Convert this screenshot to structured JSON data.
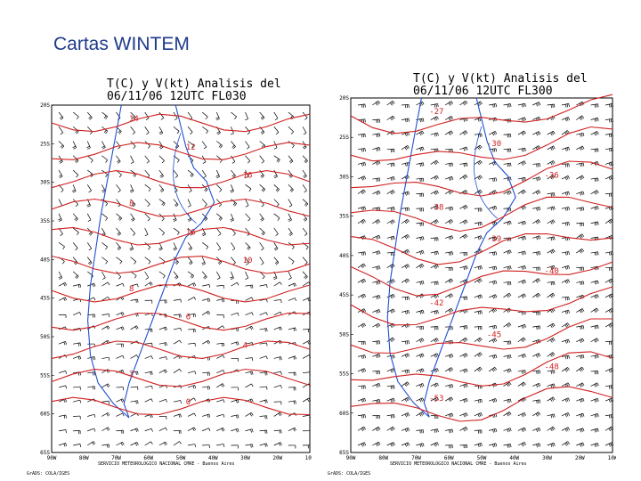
{
  "slide": {
    "title": "Cartas WINTEM"
  },
  "charts": [
    {
      "title_line1": "T(C) y V(kt)  Analisis del",
      "title_line2": "06/11/06 12UTC FL030",
      "lat_ticks": [
        "20S",
        "25S",
        "30S",
        "35S",
        "40S",
        "45S",
        "50S",
        "55S",
        "60S",
        "65S"
      ],
      "lon_ticks": [
        "90W",
        "80W",
        "70W",
        "60W",
        "50W",
        "40W",
        "30W",
        "20W",
        "10W"
      ],
      "footer_left": "GrADS: COLA/IGES",
      "footer_center": "SERVICIO METEOROLOGICO NACIONAL   CMRE - Buenos Aires",
      "isotherms": [
        "14",
        "12",
        "16",
        "8",
        "16",
        "10",
        "8",
        "6",
        "4",
        "2",
        "0"
      ],
      "colors": {
        "isotherm": "#d02020",
        "coast": "#2050d0",
        "wind": "#000000"
      }
    },
    {
      "title_line1": "T(C) y V(kt)  Analisis del",
      "title_line2": "06/11/06 12UTC FL300",
      "lat_ticks": [
        "20S",
        "25S",
        "30S",
        "35S",
        "40S",
        "45S",
        "50S",
        "55S",
        "60S",
        "65S"
      ],
      "lon_ticks": [
        "90W",
        "80W",
        "70W",
        "60W",
        "50W",
        "40W",
        "30W",
        "20W",
        "10W"
      ],
      "footer_left": "GrADS: COLA/IGES",
      "footer_center": "SERVICIO METEOROLOGICO NACIONAL   CMRE - Buenos Aires",
      "isotherms": [
        "-27",
        "-30",
        "-36",
        "-38",
        "-39",
        "-40",
        "-42",
        "-45",
        "-48",
        "-53"
      ],
      "colors": {
        "isotherm": "#d02020",
        "coast": "#2050d0",
        "wind": "#000000"
      }
    }
  ]
}
